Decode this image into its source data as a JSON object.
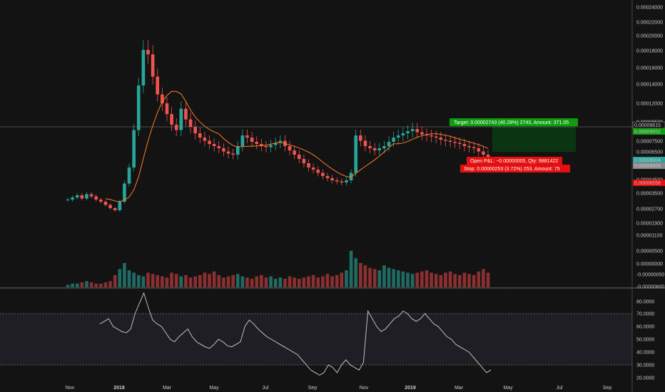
{
  "chart_data": {
    "type": "candlestick",
    "price_axis": {
      "ticks": [
        "0.00024000",
        "0.00022000",
        "0.00020000",
        "0.00018000",
        "0.00016000",
        "0.00014000",
        "0.00012000",
        "0.00008500",
        "0.00007500",
        "0.00006500",
        "0.00005500",
        "0.00004500",
        "0.00003500",
        "0.00002700",
        "0.00001900",
        "0.00001100",
        "0.00000500",
        "0.00000000",
        "-0.00000050",
        "-0.00000600"
      ]
    },
    "x_axis": {
      "ticks": [
        "Nov",
        "2018",
        "Mar",
        "May",
        "Jul",
        "Sep",
        "Nov",
        "2019",
        "Mar",
        "May",
        "Jul",
        "Sep"
      ],
      "bold_ticks": [
        "2018",
        "2019"
      ]
    },
    "price_labels": [
      {
        "text": "0.00009615",
        "bg": "#131313",
        "fg": "#ffffff"
      },
      {
        "text": "0.00009552",
        "bg": "#0f9d0f",
        "fg": "#ffffff"
      },
      {
        "text": "0.00006804",
        "bg": "#26a69a",
        "fg": "#ffffff"
      },
      {
        "text": "0.00006809",
        "bg": "#888888",
        "fg": "#ffffff"
      },
      {
        "text": "0.00006556",
        "bg": "#e50f0f",
        "fg": "#ffffff"
      }
    ],
    "position": {
      "target_text": "Target: 0.00002743 (40.28%) 2743, Amount: 371.05",
      "open_pl_text": "Open P&L: −0.00000005, Qty: 9881422",
      "stop_text": "Stop: 0.00000253 (3.72%) 253, Amount: 75"
    },
    "close_series": [
      3e-05,
      3.2e-05,
      3.4e-05,
      3.1e-05,
      3.5e-05,
      3.3e-05,
      3e-05,
      2.8e-05,
      2.5e-05,
      2.2e-05,
      2e-05,
      2.8e-05,
      4.5e-05,
      6e-05,
      9.5e-05,
      0.00014,
      0.00018,
      0.000175,
      0.00015,
      0.00013,
      0.00012,
      0.00011,
      0.0001,
      9.5e-05,
      0.000115,
      0.000105,
      9.8e-05,
      9.2e-05,
      8.8e-05,
      8.5e-05,
      8.2e-05,
      8e-05,
      7.8e-05,
      7.5e-05,
      7.3e-05,
      7.2e-05,
      8e-05,
      9e-05,
      8.8e-05,
      8.4e-05,
      8.2e-05,
      8e-05,
      7.9e-05,
      8.1e-05,
      8.3e-05,
      8.5e-05,
      8e-05,
      7.6e-05,
      7.2e-05,
      6.8e-05,
      6.4e-05,
      6e-05,
      5.8e-05,
      5.5e-05,
      5.2e-05,
      5e-05,
      4.8e-05,
      4.7e-05,
      4.6e-05,
      4.8e-05,
      5.5e-05,
      9e-05,
      8.5e-05,
      8e-05,
      7.8e-05,
      7.6e-05,
      7.8e-05,
      8e-05,
      8.4e-05,
      8.8e-05,
      9e-05,
      9.2e-05,
      9.4e-05,
      9.6e-05,
      9.3e-05,
      9.1e-05,
      9e-05,
      8.9e-05,
      8.8e-05,
      8.6e-05,
      8.5e-05,
      8.4e-05,
      8.3e-05,
      8.2e-05,
      8e-05,
      7.9e-05,
      7.8e-05,
      7.5e-05,
      7.2e-05,
      6.8e-05
    ],
    "volume_series": [
      2,
      3,
      3,
      4,
      5,
      4,
      3,
      3,
      4,
      5,
      10,
      15,
      20,
      14,
      12,
      10,
      9,
      12,
      11,
      10,
      9,
      8,
      12,
      11,
      9,
      10,
      8,
      9,
      10,
      12,
      11,
      13,
      10,
      8,
      9,
      10,
      11,
      9,
      8,
      7,
      9,
      10,
      8,
      9,
      7,
      8,
      7,
      9,
      8,
      7,
      8,
      9,
      10,
      8,
      9,
      11,
      9,
      10,
      12,
      14,
      30,
      24,
      20,
      18,
      16,
      15,
      14,
      18,
      16,
      15,
      14,
      13,
      12,
      11,
      12,
      13,
      14,
      12,
      11,
      10,
      12,
      13,
      11,
      10,
      12,
      11,
      10,
      13,
      15,
      12
    ],
    "rsi": {
      "ticks": [
        "80.0000",
        "70.0000",
        "60.0000",
        "50.0000",
        "40.0000",
        "30.0000",
        "20.0000"
      ],
      "upper_band": 70,
      "lower_band": 30,
      "values": [
        62,
        64,
        66,
        60,
        58,
        56,
        55,
        58,
        70,
        78,
        86,
        75,
        65,
        62,
        60,
        55,
        50,
        48,
        52,
        55,
        58,
        52,
        48,
        46,
        44,
        43,
        46,
        50,
        48,
        45,
        44,
        46,
        48,
        60,
        65,
        62,
        58,
        55,
        52,
        50,
        48,
        46,
        44,
        42,
        40,
        38,
        34,
        30,
        26,
        24,
        22,
        24,
        30,
        28,
        24,
        30,
        34,
        30,
        28,
        26,
        32,
        72,
        66,
        60,
        56,
        58,
        62,
        66,
        68,
        72,
        70,
        66,
        64,
        66,
        70,
        66,
        62,
        60,
        56,
        52,
        50,
        46,
        44,
        42,
        40,
        36,
        32,
        28,
        24,
        26
      ]
    }
  }
}
